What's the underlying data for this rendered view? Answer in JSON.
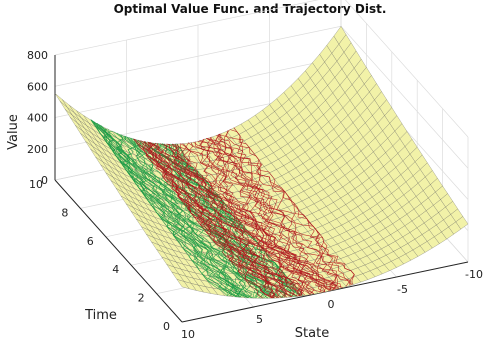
{
  "chart_data": {
    "type": "surface",
    "title": "Optimal Value Func. and Trajectory Dist.",
    "xlabel": "State",
    "ylabel": "Time",
    "zlabel": "Value",
    "xlim": [
      -10,
      10
    ],
    "ylim": [
      0,
      10
    ],
    "zlim": [
      0,
      800
    ],
    "xticks": [
      "-10",
      "-5",
      "0",
      "5",
      "10"
    ],
    "yticks": [
      "0",
      "2",
      "4",
      "6",
      "8",
      "10"
    ],
    "zticks": [
      "800",
      "600",
      "400",
      "200",
      "0"
    ],
    "grid": true,
    "surface": {
      "name": "Optimal value function",
      "color": "#f2f2a8",
      "samples": [
        {
          "state": 10,
          "time": 10,
          "value": 620
        },
        {
          "state": 10,
          "time": 0,
          "value": 500
        },
        {
          "state": 0,
          "time": 10,
          "value": 50
        },
        {
          "state": 0,
          "time": 0,
          "value": 0
        },
        {
          "state": -10,
          "time": 10,
          "value": 800
        },
        {
          "state": -10,
          "time": 0,
          "value": 520
        }
      ]
    },
    "series": [
      {
        "color": "#1a9c45",
        "state_range": [
          2,
          7
        ],
        "time_range": [
          0,
          10
        ]
      },
      {
        "color": "#b0101a",
        "state_range": [
          -2,
          4
        ],
        "time_range": [
          0,
          10
        ]
      }
    ]
  }
}
